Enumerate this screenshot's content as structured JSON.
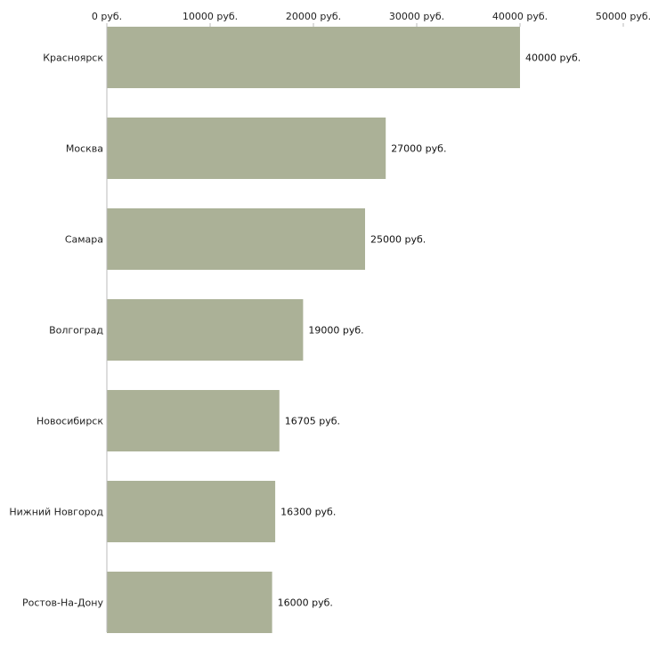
{
  "chart_data": {
    "type": "bar",
    "orientation": "horizontal",
    "categories": [
      "Красноярск",
      "Москва",
      "Самара",
      "Волгоград",
      "Новосибирск",
      "Нижний Новгород",
      "Ростов-На-Дону"
    ],
    "values": [
      40000,
      27000,
      25000,
      19000,
      16705,
      16300,
      16000
    ],
    "value_labels": [
      "40000 руб.",
      "27000 руб.",
      "25000 руб.",
      "19000 руб.",
      "16705 руб.",
      "16300 руб.",
      "16000 руб."
    ],
    "xlim": [
      0,
      50000
    ],
    "xticks": [
      0,
      10000,
      20000,
      30000,
      40000,
      50000
    ],
    "xtick_labels": [
      "0 руб.",
      "10000 руб.",
      "20000 руб.",
      "30000 руб.",
      "40000 руб.",
      "50000 руб."
    ],
    "axis_position": "top",
    "grid": false,
    "title": "",
    "xlabel": "",
    "ylabel": "",
    "bar_color": "#abb197"
  }
}
